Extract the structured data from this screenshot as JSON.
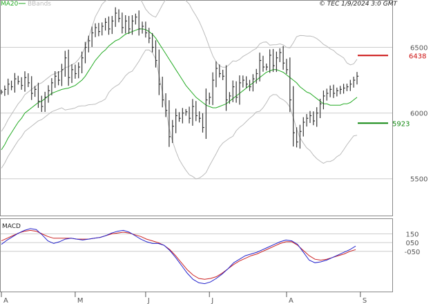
{
  "header": {
    "source_text": "© TEC 1/9/2024 3:0 GMT"
  },
  "legend": {
    "ma20": "MA20",
    "bbands": "BBands",
    "ma_color": "#22aa22",
    "bbands_color": "#bbbbbb"
  },
  "colors": {
    "candles": "#333333",
    "resistance": "#cc1111",
    "support": "#118811",
    "macd": "#2222cc",
    "signal": "#cc2222",
    "grid": "#cccccc",
    "frame": "#888888"
  },
  "chart_data": [
    {
      "type": "bar",
      "ylim": [
        5220,
        6860
      ],
      "ytick_labels": [
        {
          "value": 5500,
          "label": "5500"
        },
        {
          "value": 6000,
          "label": "6000"
        },
        {
          "value": 6500,
          "label": "6500"
        }
      ],
      "x_tick_labels": [
        {
          "index": 0,
          "label": "A"
        },
        {
          "index": 22,
          "label": "M"
        },
        {
          "index": 43,
          "label": "J"
        },
        {
          "index": 62,
          "label": "J"
        },
        {
          "index": 85,
          "label": "A"
        },
        {
          "index": 107,
          "label": "S"
        }
      ],
      "levels": [
        {
          "name": "resistance",
          "value": 6438,
          "label": "6438"
        },
        {
          "name": "support",
          "value": 5923,
          "label": "5923"
        }
      ],
      "close": [
        6160,
        6180,
        6220,
        6200,
        6260,
        6240,
        6210,
        6270,
        6230,
        6150,
        6180,
        6090,
        6050,
        6120,
        6170,
        6230,
        6280,
        6250,
        6330,
        6420,
        6270,
        6330,
        6300,
        6350,
        6420,
        6500,
        6550,
        6610,
        6650,
        6620,
        6660,
        6690,
        6640,
        6700,
        6760,
        6720,
        6650,
        6700,
        6640,
        6700,
        6730,
        6640,
        6660,
        6610,
        6570,
        6500,
        6400,
        6220,
        6100,
        6020,
        5820,
        5900,
        5980,
        5960,
        6000,
        6010,
        5960,
        6050,
        5980,
        5960,
        5890,
        6100,
        6120,
        6250,
        6340,
        6300,
        6280,
        6100,
        6130,
        6200,
        6120,
        6230,
        6250,
        6220,
        6200,
        6260,
        6300,
        6400,
        6350,
        6350,
        6440,
        6360,
        6420,
        6460,
        6380,
        6330,
        6100,
        5850,
        5780,
        5860,
        5930,
        5960,
        5980,
        5940,
        6000,
        6070,
        6130,
        6150,
        6180,
        6150,
        6170,
        6180,
        6190,
        6200,
        6220,
        6250,
        6280
      ],
      "ma20": [
        5720,
        5760,
        5810,
        5850,
        5890,
        5930,
        5960,
        6000,
        6020,
        6040,
        6060,
        6080,
        6090,
        6110,
        6130,
        6150,
        6160,
        6170,
        6180,
        6185,
        6190,
        6200,
        6210,
        6230,
        6250,
        6280,
        6320,
        6360,
        6400,
        6430,
        6460,
        6480,
        6510,
        6530,
        6550,
        6560,
        6580,
        6600,
        6610,
        6620,
        6630,
        6640,
        6640,
        6635,
        6620,
        6600,
        6570,
        6530,
        6490,
        6450,
        6410,
        6370,
        6330,
        6290,
        6250,
        6210,
        6180,
        6150,
        6120,
        6100,
        6080,
        6060,
        6050,
        6040,
        6040,
        6050,
        6060,
        6070,
        6090,
        6110,
        6130,
        6150,
        6170,
        6190,
        6210,
        6230,
        6250,
        6270,
        6290,
        6310,
        6320,
        6330,
        6330,
        6320,
        6310,
        6290,
        6270,
        6250,
        6230,
        6200,
        6180,
        6160,
        6150,
        6130,
        6110,
        6090,
        6070,
        6070,
        6060,
        6060,
        6060,
        6060,
        6070,
        6070,
        6080,
        6100,
        6120
      ]
    },
    {
      "type": "line",
      "title": "MACD",
      "ylim": [
        -5.1,
        3.2
      ],
      "ytick_labels": [
        {
          "value": 1.5,
          "label": "150"
        },
        {
          "value": 0.5,
          "label": "050"
        },
        {
          "value": -0.5,
          "label": "-050"
        }
      ],
      "series": [
        {
          "name": "macd",
          "values": [
            0.3,
            0.8,
            1.2,
            1.6,
            1.9,
            2.1,
            2.0,
            1.4,
            0.7,
            0.4,
            0.6,
            0.9,
            1.0,
            0.9,
            0.8,
            0.9,
            1.0,
            1.1,
            1.3,
            1.6,
            1.8,
            1.9,
            1.7,
            1.3,
            0.9,
            0.6,
            0.4,
            0.4,
            0.2,
            -0.4,
            -1.2,
            -2.1,
            -3.0,
            -3.7,
            -4.1,
            -4.2,
            -4.0,
            -3.6,
            -3.1,
            -2.5,
            -1.8,
            -1.4,
            -1.0,
            -0.8,
            -0.6,
            -0.3,
            0.0,
            0.3,
            0.6,
            0.8,
            0.7,
            0.3,
            -0.6,
            -1.5,
            -1.8,
            -1.7,
            -1.5,
            -1.2,
            -0.9,
            -0.6,
            -0.3,
            0.1
          ]
        },
        {
          "name": "signal",
          "values": [
            0.7,
            1.0,
            1.3,
            1.6,
            1.8,
            1.9,
            1.8,
            1.5,
            1.2,
            1.0,
            1.0,
            1.0,
            1.0,
            0.9,
            0.9,
            0.9,
            1.0,
            1.1,
            1.3,
            1.5,
            1.6,
            1.7,
            1.6,
            1.4,
            1.2,
            0.9,
            0.7,
            0.5,
            0.2,
            -0.3,
            -1.0,
            -1.8,
            -2.6,
            -3.2,
            -3.6,
            -3.7,
            -3.6,
            -3.4,
            -3.0,
            -2.5,
            -2.0,
            -1.6,
            -1.3,
            -1.0,
            -0.8,
            -0.5,
            -0.2,
            0.1,
            0.4,
            0.6,
            0.6,
            0.2,
            -0.4,
            -1.0,
            -1.4,
            -1.5,
            -1.4,
            -1.2,
            -1.0,
            -0.8,
            -0.5,
            -0.3
          ]
        }
      ]
    }
  ]
}
